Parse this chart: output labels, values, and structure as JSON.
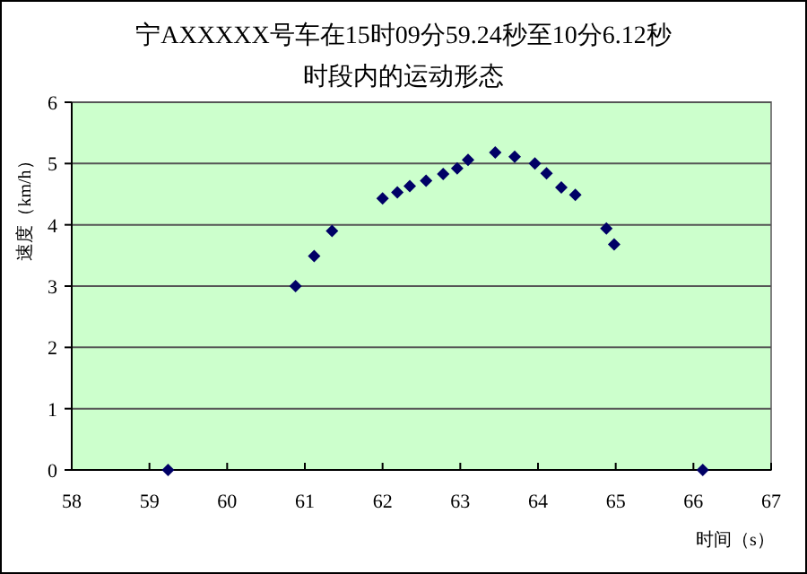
{
  "chart_data": {
    "type": "scatter",
    "title": "宁AXXXXX号车在15时09分59.24秒至10分6.12秒",
    "subtitle": "时段内的运动形态",
    "xlabel": "时间（s）",
    "ylabel": "速度（km/h）",
    "x": [
      59.24,
      60.88,
      61.12,
      61.35,
      62.0,
      62.19,
      62.35,
      62.56,
      62.78,
      62.96,
      63.1,
      63.45,
      63.7,
      63.96,
      64.11,
      64.3,
      64.48,
      64.88,
      64.98,
      66.12
    ],
    "series": [
      {
        "color": "#000066",
        "values": [
          0,
          3.0,
          3.49,
          3.9,
          4.43,
          4.53,
          4.63,
          4.72,
          4.83,
          4.92,
          5.06,
          5.18,
          5.11,
          5.0,
          4.84,
          4.61,
          4.49,
          3.94,
          3.68,
          0
        ]
      }
    ],
    "xlim": [
      58,
      67
    ],
    "ylim": [
      0,
      6
    ],
    "xticks": [
      58,
      59,
      60,
      61,
      62,
      63,
      64,
      65,
      66,
      67
    ],
    "yticks": [
      0,
      1,
      2,
      3,
      4,
      5,
      6
    ],
    "grid": "y",
    "marker": "diamond"
  }
}
